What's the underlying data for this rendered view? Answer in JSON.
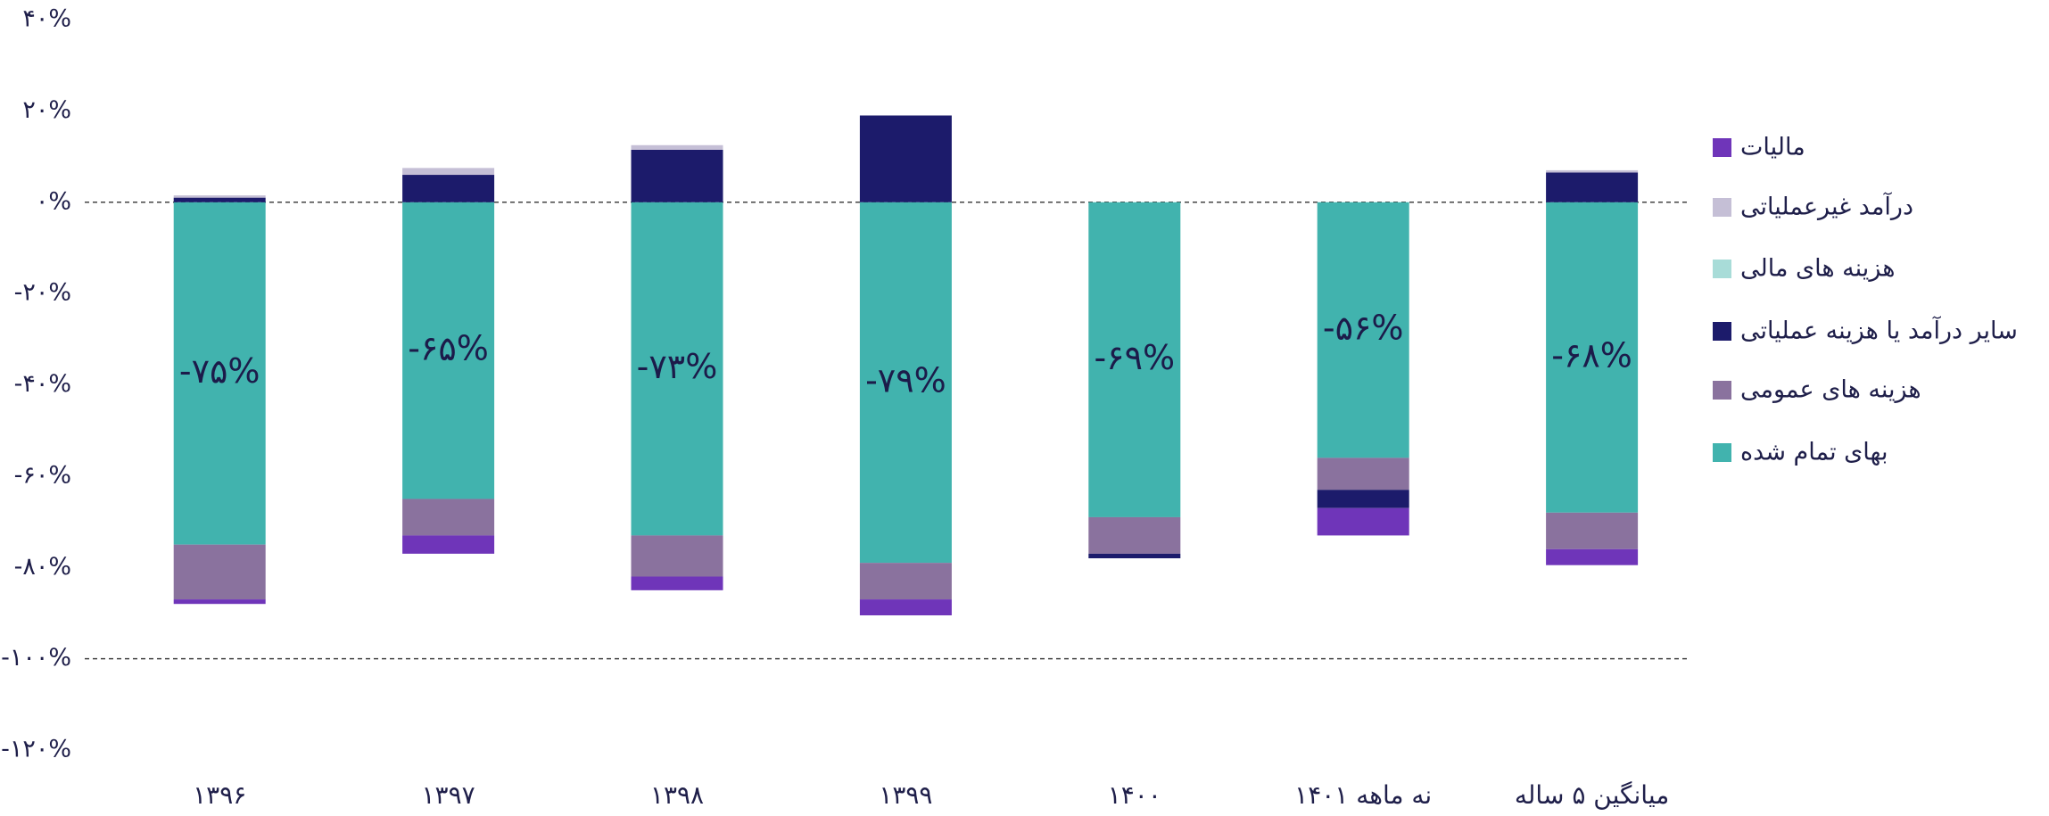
{
  "chart_data": {
    "type": "stacked_bar",
    "categories": [
      "۱۳۹۶",
      "۱۳۹۷",
      "۱۳۹۸",
      "۱۳۹۹",
      "۱۴۰۰",
      "نه ماهه ۱۴۰۱",
      "میانگین ۵ ساله"
    ],
    "series": [
      {
        "name": "بهای تمام شده",
        "color": "#41b3ae",
        "values": [
          -75,
          -65,
          -73,
          -79,
          -69,
          -56,
          -68
        ],
        "value_labels": [
          "-۷۵%",
          "-۶۵%",
          "-۷۳%",
          "-۷۹%",
          "-۶۹%",
          "-۵۶%",
          "-۶۸%"
        ]
      },
      {
        "name": "هزینه های عمومی",
        "color": "#8a729e",
        "values": [
          -12,
          -8,
          -9,
          -8,
          -8,
          -7,
          -8
        ]
      },
      {
        "name": "سایر درآمد یا هزینه عملیاتی",
        "color": "#1c1b6b",
        "values": [
          1,
          6,
          11.5,
          19,
          -1,
          -4,
          6.5
        ]
      },
      {
        "name": "هزینه های مالی",
        "color": "#a8dcd8",
        "values": [
          0,
          0,
          0,
          0,
          0,
          0,
          0
        ]
      },
      {
        "name": "درآمد غیرعملیاتی",
        "color": "#c5bfd6",
        "values": [
          0.5,
          1.5,
          1,
          0,
          0,
          0,
          0.5
        ]
      },
      {
        "name": "مالیات",
        "color": "#6f35b9",
        "values": [
          -1,
          -4,
          -3,
          -3.5,
          0,
          -6,
          -3.5
        ]
      }
    ],
    "ylim": [
      -120,
      40
    ],
    "yticks": [
      {
        "value": -120,
        "label": "-۱۲۰%"
      },
      {
        "value": -100,
        "label": "-۱۰۰%"
      },
      {
        "value": -80,
        "label": "-۸۰%"
      },
      {
        "value": -60,
        "label": "-۶۰%"
      },
      {
        "value": -40,
        "label": "-۴۰%"
      },
      {
        "value": -20,
        "label": "-۲۰%"
      },
      {
        "value": 0,
        "label": "۰%"
      },
      {
        "value": 20,
        "label": "۲۰%"
      },
      {
        "value": 40,
        "label": "۴۰%"
      }
    ],
    "hlines": [
      0,
      -100
    ],
    "legend": "right"
  }
}
